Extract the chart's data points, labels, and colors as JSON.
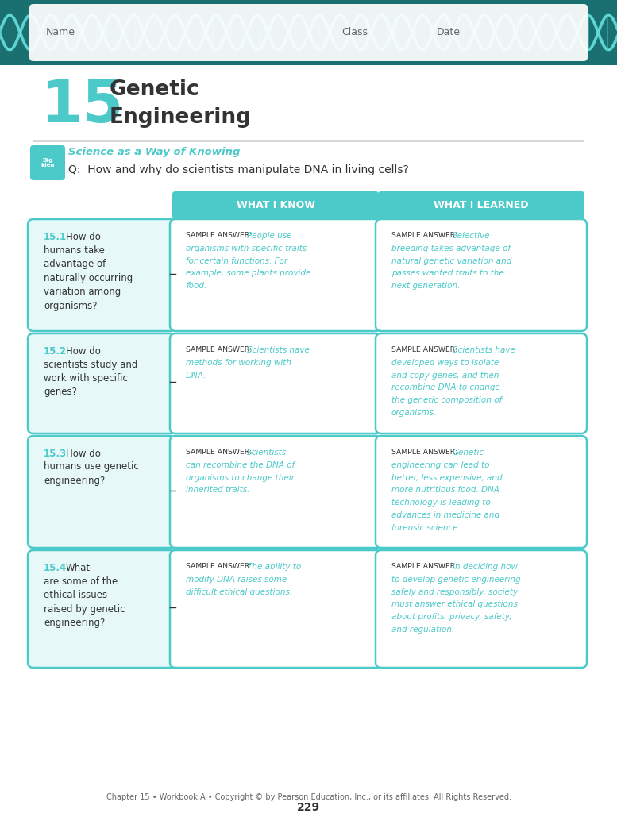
{
  "page_bg": "#ffffff",
  "teal": "#4cc9c9",
  "teal_light": "#e6f8f8",
  "gray_text": "#666666",
  "dark_gray": "#333333",
  "dna_bg": "#1a7070",
  "dna_wave": "#66dddd",
  "chapter_num": "15",
  "chapter_title_line1": "Genetic",
  "chapter_title_line2": "Engineering",
  "big_idea_label": "Science as a Way of Knowing",
  "big_idea_q": "Q:  How and why do scientists manipulate DNA in living cells?",
  "col1_header": "WHAT I KNOW",
  "col2_header": "WHAT I LEARNED",
  "footer": "Chapter 15 • Workbook A • Copyright © by Pearson Education, Inc., or its affiliates. All Rights Reserved.",
  "page_num": "229",
  "rows": [
    {
      "number": "15.1",
      "question_num_line": "How do",
      "question_rest": "humans take\nadvantage of\nnaturally occurring\nvariation among\norganisms?",
      "know_label": "SAMPLE ANSWER:  ",
      "know_body": "People use\norganisms with specific traits\nfor certain functions. For\nexample, some plants provide\nfood.",
      "learned_label": "SAMPLE ANSWER:  ",
      "learned_body": "Selective\nbreeding takes advantage of\nnatural genetic variation and\npasses wanted traits to the\nnext generation."
    },
    {
      "number": "15.2",
      "question_num_line": "How do",
      "question_rest": "scientists study and\nwork with specific\ngenes?",
      "know_label": "SAMPLE ANSWER:  ",
      "know_body": "Scientists have\nmethods for working with\nDNA.",
      "learned_label": "SAMPLE ANSWER:  ",
      "learned_body": "Scientists have\ndeveloped ways to isolate\nand copy genes, and then\nrecombine DNA to change\nthe genetic composition of\norganisms."
    },
    {
      "number": "15.3",
      "question_num_line": "How do",
      "question_rest": "humans use genetic\nengineering?",
      "know_label": "SAMPLE ANSWER:  ",
      "know_body": "Scientists\ncan recombine the DNA of\norganisms to change their\ninherited traits.",
      "learned_label": "SAMPLE ANSWER:  ",
      "learned_body": "Genetic\nengineering can lead to\nbetter, less expensive, and\nmore nutritious food. DNA\ntechnology is leading to\nadvances in medicine and\nforensic science."
    },
    {
      "number": "15.4",
      "question_num_line": "What",
      "question_rest": "are some of the\nethical issues\nraised by genetic\nengineering?",
      "know_label": "SAMPLE ANSWER:  ",
      "know_body": "The ability to\nmodify DNA raises some\ndifficult ethical questions.",
      "learned_label": "SAMPLE ANSWER:  ",
      "learned_body": "In deciding how\nto develop genetic engineering\nsafely and responsibly, society\nmust answer ethical questions\nabout profits, privacy, safety,\nand regulation."
    }
  ]
}
